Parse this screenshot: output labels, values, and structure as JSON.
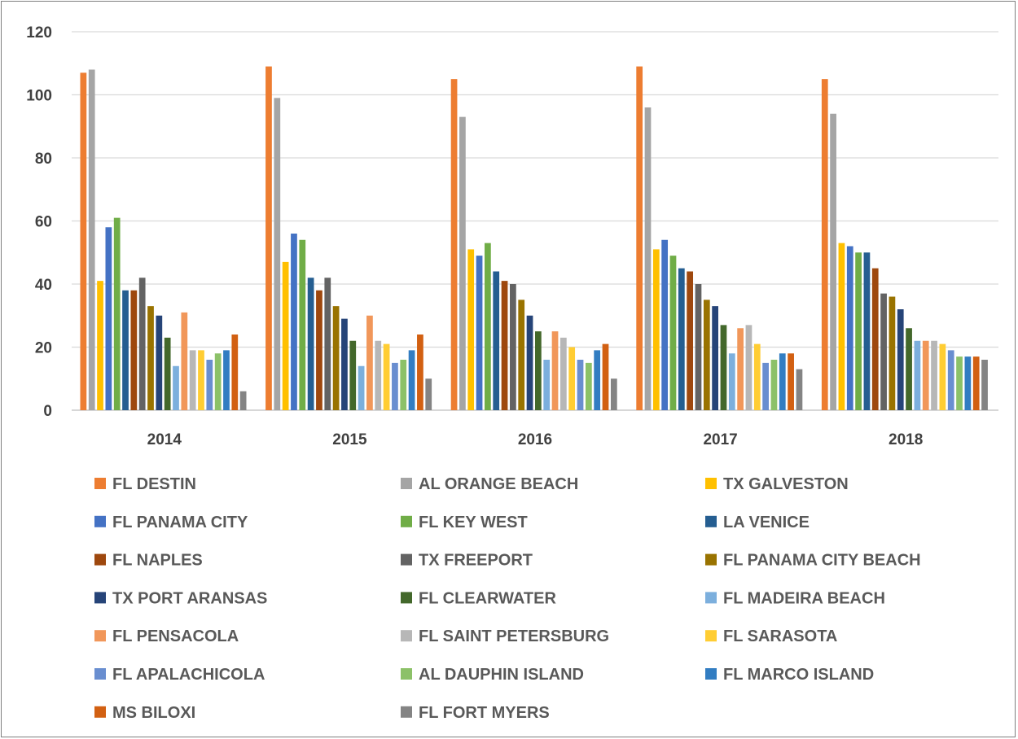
{
  "chart_data": {
    "type": "bar",
    "categories": [
      "2014",
      "2015",
      "2016",
      "2017",
      "2018"
    ],
    "ylim": [
      0,
      120
    ],
    "yticks": [
      "0",
      "20",
      "40",
      "60",
      "80",
      "100",
      "120"
    ],
    "grid": true,
    "legend_position": "bottom",
    "series": [
      {
        "name": "FL DESTIN",
        "color": "#ED7D31",
        "values": [
          107,
          109,
          105,
          109,
          105
        ]
      },
      {
        "name": "AL ORANGE BEACH",
        "color": "#A5A5A5",
        "values": [
          108,
          99,
          93,
          96,
          94
        ]
      },
      {
        "name": "TX GALVESTON",
        "color": "#FFC000",
        "values": [
          41,
          47,
          51,
          51,
          53
        ]
      },
      {
        "name": "FL PANAMA CITY",
        "color": "#4472C4",
        "values": [
          58,
          56,
          49,
          54,
          52
        ]
      },
      {
        "name": "FL KEY WEST",
        "color": "#70AD47",
        "values": [
          61,
          54,
          53,
          49,
          50
        ]
      },
      {
        "name": "LA VENICE",
        "color": "#255E91",
        "values": [
          38,
          42,
          44,
          45,
          50
        ]
      },
      {
        "name": "FL NAPLES",
        "color": "#9E480E",
        "values": [
          38,
          38,
          41,
          44,
          45
        ]
      },
      {
        "name": "TX FREEPORT",
        "color": "#636363",
        "values": [
          42,
          42,
          40,
          40,
          37
        ]
      },
      {
        "name": "FL PANAMA CITY BEACH",
        "color": "#997300",
        "values": [
          33,
          33,
          35,
          35,
          36
        ]
      },
      {
        "name": "TX PORT ARANSAS",
        "color": "#264478",
        "values": [
          30,
          29,
          30,
          33,
          32
        ]
      },
      {
        "name": "FL CLEARWATER",
        "color": "#43682B",
        "values": [
          23,
          22,
          25,
          27,
          26
        ]
      },
      {
        "name": "FL MADEIRA BEACH",
        "color": "#7CAFDD",
        "values": [
          14,
          14,
          16,
          18,
          22
        ]
      },
      {
        "name": "FL PENSACOLA",
        "color": "#F1975A",
        "values": [
          31,
          30,
          25,
          26,
          22
        ]
      },
      {
        "name": "FL SAINT PETERSBURG",
        "color": "#B7B7B7",
        "values": [
          19,
          22,
          23,
          27,
          22
        ]
      },
      {
        "name": "FL SARASOTA",
        "color": "#FFCD33",
        "values": [
          19,
          21,
          20,
          21,
          21
        ]
      },
      {
        "name": "FL APALACHICOLA",
        "color": "#698ED0",
        "values": [
          16,
          15,
          16,
          15,
          19
        ]
      },
      {
        "name": "AL DAUPHIN ISLAND",
        "color": "#8CC168",
        "values": [
          18,
          16,
          15,
          16,
          17
        ]
      },
      {
        "name": "FL MARCO ISLAND",
        "color": "#327DC2",
        "values": [
          19,
          19,
          19,
          18,
          17
        ]
      },
      {
        "name": "MS BILOXI",
        "color": "#D26012",
        "values": [
          24,
          24,
          21,
          18,
          17
        ]
      },
      {
        "name": "FL FORT MYERS",
        "color": "#848484",
        "values": [
          6,
          10,
          10,
          13,
          16
        ]
      }
    ]
  }
}
